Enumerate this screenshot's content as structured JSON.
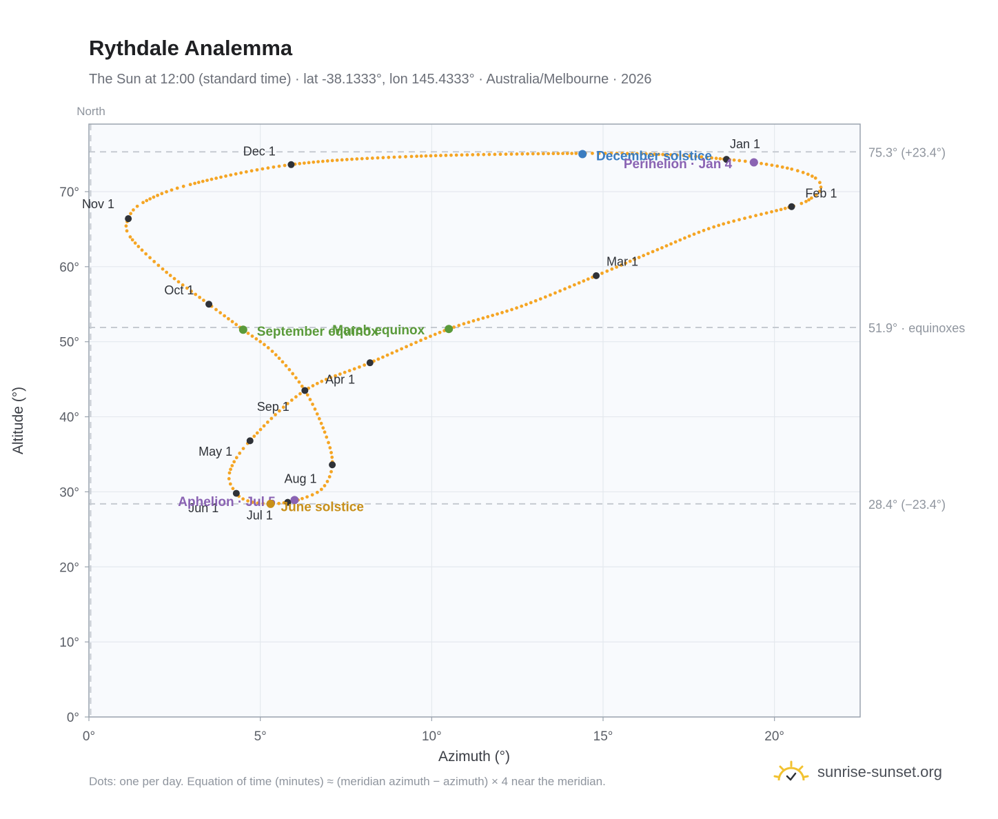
{
  "chart_data": {
    "type": "scatter",
    "title": "Rythdale Analemma",
    "subtitle": "The Sun at 12:00 (standard time) · lat -38.1333°, lon 145.4333° · Australia/Melbourne · 2026",
    "xlabel": "Azimuth (°)",
    "ylabel": "Altitude (°)",
    "xlim": [
      0,
      22.5
    ],
    "ylim": [
      0,
      79
    ],
    "x_ticks": [
      0,
      5,
      10,
      15,
      20
    ],
    "x_tick_labels": [
      "0°",
      "5°",
      "10°",
      "15°",
      "20°"
    ],
    "y_ticks": [
      0,
      10,
      20,
      30,
      40,
      50,
      60,
      70
    ],
    "y_tick_labels": [
      "0°",
      "10°",
      "20°",
      "30°",
      "40°",
      "50°",
      "60°",
      "70°"
    ],
    "grid": true,
    "north_label": "North",
    "reference_lines": [
      {
        "y": 75.3,
        "label": "75.3° (+23.4°)"
      },
      {
        "y": 51.9,
        "label": "51.9° · equinoxes"
      },
      {
        "y": 28.4,
        "label": "28.4° (−23.4°)"
      }
    ],
    "meridian_x": 0.05,
    "analemma_path": [
      {
        "x": 18.6,
        "y": 74.3,
        "date": "Jan 1"
      },
      {
        "x": 19.4,
        "y": 73.9
      },
      {
        "x": 20.5,
        "y": 73.0
      },
      {
        "x": 21.2,
        "y": 71.8
      },
      {
        "x": 21.35,
        "y": 70.4
      },
      {
        "x": 21.1,
        "y": 69.2
      },
      {
        "x": 20.5,
        "y": 68.0,
        "date": "Feb 1"
      },
      {
        "x": 18.3,
        "y": 65.4
      },
      {
        "x": 16.5,
        "y": 62.1
      },
      {
        "x": 14.8,
        "y": 58.8,
        "date": "Mar 1"
      },
      {
        "x": 12.6,
        "y": 54.7
      },
      {
        "x": 10.5,
        "y": 51.7
      },
      {
        "x": 8.2,
        "y": 47.2,
        "date": "Apr 1"
      },
      {
        "x": 6.3,
        "y": 43.5
      },
      {
        "x": 4.7,
        "y": 36.8,
        "date": "May 1"
      },
      {
        "x": 4.1,
        "y": 32.5
      },
      {
        "x": 4.3,
        "y": 29.8,
        "date": "Jun 1"
      },
      {
        "x": 4.7,
        "y": 28.7
      },
      {
        "x": 5.3,
        "y": 28.4
      },
      {
        "x": 5.8,
        "y": 28.6,
        "date": "Jul 1"
      },
      {
        "x": 6.1,
        "y": 28.9
      },
      {
        "x": 6.8,
        "y": 30.4
      },
      {
        "x": 7.1,
        "y": 33.6,
        "date": "Aug 1"
      },
      {
        "x": 6.9,
        "y": 37.7
      },
      {
        "x": 6.3,
        "y": 43.5,
        "date": "Sep 1"
      },
      {
        "x": 5.4,
        "y": 48.5
      },
      {
        "x": 4.5,
        "y": 51.6
      },
      {
        "x": 3.5,
        "y": 55.0,
        "date": "Oct 1"
      },
      {
        "x": 2.2,
        "y": 59.5
      },
      {
        "x": 1.2,
        "y": 64.0
      },
      {
        "x": 1.15,
        "y": 66.4,
        "date": "Nov 1"
      },
      {
        "x": 1.6,
        "y": 68.6
      },
      {
        "x": 3.0,
        "y": 71.0
      },
      {
        "x": 5.9,
        "y": 73.6,
        "date": "Dec 1"
      },
      {
        "x": 9.5,
        "y": 74.7
      },
      {
        "x": 14.4,
        "y": 75.1
      },
      {
        "x": 17.0,
        "y": 74.9
      },
      {
        "x": 18.6,
        "y": 74.3
      }
    ],
    "month_markers": [
      {
        "label": "Jan 1",
        "x": 18.6,
        "y": 74.3,
        "lx": 18.7,
        "ly": 75.8,
        "anchor": "start"
      },
      {
        "label": "Feb 1",
        "x": 20.5,
        "y": 68.0,
        "lx": 20.9,
        "ly": 69.2,
        "anchor": "start"
      },
      {
        "label": "Mar 1",
        "x": 14.8,
        "y": 58.8,
        "lx": 15.1,
        "ly": 60.1,
        "anchor": "start"
      },
      {
        "label": "Apr 1",
        "x": 8.2,
        "y": 47.2,
        "lx": 6.9,
        "ly": 44.4,
        "anchor": "start"
      },
      {
        "label": "May 1",
        "x": 4.7,
        "y": 36.8,
        "lx": 3.2,
        "ly": 34.8,
        "anchor": "start"
      },
      {
        "label": "Jun 1",
        "x": 4.3,
        "y": 29.8,
        "lx": 2.9,
        "ly": 27.3,
        "anchor": "start"
      },
      {
        "label": "Jul 1",
        "x": 5.8,
        "y": 28.6,
        "lx": 4.6,
        "ly": 26.3,
        "anchor": "start"
      },
      {
        "label": "Aug 1",
        "x": 7.1,
        "y": 33.6,
        "lx": 5.7,
        "ly": 31.2,
        "anchor": "start"
      },
      {
        "label": "Sep 1",
        "x": 6.3,
        "y": 43.5,
        "lx": 4.9,
        "ly": 40.8,
        "anchor": "start"
      },
      {
        "label": "Oct 1",
        "x": 3.5,
        "y": 55.0,
        "lx": 2.2,
        "ly": 56.3,
        "anchor": "start"
      },
      {
        "label": "Nov 1",
        "x": 1.15,
        "y": 66.4,
        "lx": -0.2,
        "ly": 67.8,
        "anchor": "start"
      },
      {
        "label": "Dec 1",
        "x": 5.9,
        "y": 73.6,
        "lx": 4.5,
        "ly": 74.8,
        "anchor": "start"
      }
    ],
    "events": [
      {
        "label": "December solstice",
        "x": 14.4,
        "y": 75.0,
        "color": "#3a7cc0",
        "lx": 14.8,
        "ly": 74.2
      },
      {
        "label": "Perihelion · Jan 4",
        "x": 19.4,
        "y": 73.9,
        "color": "#8a63b3",
        "lx": 15.6,
        "ly": 73.1
      },
      {
        "label": "March equinox",
        "x": 10.5,
        "y": 51.7,
        "color": "#5a9a3a",
        "lx": 7.1,
        "ly": 51.0
      },
      {
        "label": "September equinox",
        "x": 4.5,
        "y": 51.6,
        "color": "#5a9a3a",
        "lx": 4.9,
        "ly": 50.8
      },
      {
        "label": "Aphelion · Jul 5",
        "x": 6.0,
        "y": 28.9,
        "color": "#8a63b3",
        "lx": 2.6,
        "ly": 28.1
      },
      {
        "label": "June solstice",
        "x": 5.3,
        "y": 28.4,
        "color": "#c8901a",
        "lx": 5.6,
        "ly": 27.4
      }
    ],
    "colors": {
      "path": "#f5a524",
      "month_marker": "#2f3238",
      "grid": "#e4e8ee",
      "plot_background": "#f8fafd",
      "frame": "#9aa3ae",
      "reference_line": "#c5cad1"
    }
  },
  "footnote": "Dots: one per day. Equation of time (minutes) ≈ (meridian azimuth − azimuth) × 4 near the meridian.",
  "brand": {
    "text": "sunrise-sunset.org",
    "icon": "sun-logo-icon"
  }
}
